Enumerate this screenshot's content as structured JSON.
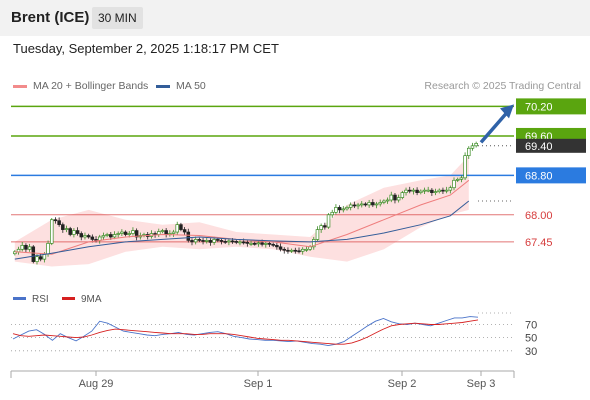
{
  "header": {
    "instrument": "Brent (ICE)",
    "timeframe": "30 MIN"
  },
  "datetime": "Tuesday, September 2, 2025 1:18:17 PM CET",
  "legend": {
    "items": [
      {
        "label": "MA 20 + Bollinger Bands",
        "color": "#f28b8b"
      },
      {
        "label": "MA 50",
        "color": "#335d99"
      }
    ],
    "copyright": "Research © 2025 Trading Central"
  },
  "chart_data": {
    "type": "candlestick",
    "price_ylim": [
      66.9,
      70.35
    ],
    "x_tick_labels": [
      "Aug 29",
      "Sep 1",
      "Sep 2",
      "Sep 3"
    ],
    "levels": [
      {
        "value": 70.2,
        "label": "70.20",
        "kind": "resistance",
        "color": "#5aa50f"
      },
      {
        "value": 69.6,
        "label": "69.60",
        "kind": "resistance",
        "color": "#5aa50f"
      },
      {
        "value": 69.4,
        "label": "69.40",
        "kind": "last-price",
        "color": "#333333"
      },
      {
        "value": 68.8,
        "label": "68.80",
        "kind": "pivot",
        "color": "#2b7be0"
      },
      {
        "value": 68.0,
        "label": "68.00",
        "kind": "support",
        "color": "#d63c3c"
      },
      {
        "value": 67.45,
        "label": "67.45",
        "kind": "support",
        "color": "#d63c3c"
      }
    ],
    "closes": [
      67.25,
      67.3,
      67.38,
      67.3,
      67.35,
      67.05,
      67.15,
      67.1,
      67.2,
      67.42,
      67.9,
      67.88,
      67.8,
      67.7,
      67.72,
      67.6,
      67.68,
      67.62,
      67.55,
      67.58,
      67.55,
      67.5,
      67.48,
      67.55,
      67.58,
      67.6,
      67.55,
      67.6,
      67.62,
      67.65,
      67.6,
      67.62,
      67.68,
      67.55,
      67.58,
      67.6,
      67.56,
      67.62,
      67.6,
      67.66,
      67.68,
      67.6,
      67.62,
      67.65,
      67.8,
      67.7,
      67.65,
      67.48,
      67.45,
      67.5,
      67.48,
      67.46,
      67.48,
      67.44,
      67.5,
      67.48,
      67.46,
      67.45,
      67.47,
      67.46,
      67.44,
      67.45,
      67.44,
      67.42,
      67.42,
      67.41,
      67.43,
      67.4,
      67.42,
      67.4,
      67.38,
      67.35,
      67.3,
      67.28,
      67.26,
      67.28,
      67.27,
      67.26,
      67.3,
      67.3,
      67.35,
      67.5,
      67.7,
      67.78,
      67.75,
      68.0,
      68.05,
      68.15,
      68.1,
      68.12,
      68.15,
      68.2,
      68.18,
      68.2,
      68.22,
      68.2,
      68.25,
      68.2,
      68.22,
      68.25,
      68.28,
      68.3,
      68.4,
      68.3,
      68.35,
      68.45,
      68.5,
      68.48,
      68.5,
      68.45,
      68.48,
      68.5,
      68.5,
      68.45,
      68.47,
      68.5,
      68.48,
      68.5,
      68.55,
      68.7,
      68.72,
      68.75,
      69.2,
      69.35,
      69.4,
      69.45
    ],
    "ma20": [
      [
        0,
        67.25
      ],
      [
        10,
        67.2
      ],
      [
        20,
        67.45
      ],
      [
        30,
        67.55
      ],
      [
        40,
        67.6
      ],
      [
        50,
        67.58
      ],
      [
        60,
        67.5
      ],
      [
        70,
        67.45
      ],
      [
        80,
        67.35
      ],
      [
        90,
        67.6
      ],
      [
        100,
        67.9
      ],
      [
        110,
        68.2
      ],
      [
        118,
        68.4
      ],
      [
        123,
        68.7
      ]
    ],
    "ma50": [
      [
        0,
        67.1
      ],
      [
        10,
        67.22
      ],
      [
        20,
        67.35
      ],
      [
        30,
        67.45
      ],
      [
        40,
        67.5
      ],
      [
        50,
        67.55
      ],
      [
        60,
        67.5
      ],
      [
        70,
        67.47
      ],
      [
        80,
        67.45
      ],
      [
        90,
        67.5
      ],
      [
        100,
        67.63
      ],
      [
        110,
        67.8
      ],
      [
        118,
        67.98
      ],
      [
        123,
        68.28
      ]
    ],
    "bb_upper": [
      [
        0,
        67.45
      ],
      [
        10,
        67.9
      ],
      [
        20,
        68.1
      ],
      [
        30,
        67.9
      ],
      [
        40,
        67.8
      ],
      [
        50,
        67.85
      ],
      [
        60,
        67.65
      ],
      [
        70,
        67.6
      ],
      [
        80,
        67.55
      ],
      [
        90,
        68.2
      ],
      [
        100,
        68.55
      ],
      [
        110,
        68.7
      ],
      [
        118,
        68.8
      ],
      [
        123,
        69.2
      ]
    ],
    "bb_lower": [
      [
        0,
        67.05
      ],
      [
        10,
        66.95
      ],
      [
        20,
        67.0
      ],
      [
        30,
        67.25
      ],
      [
        40,
        67.35
      ],
      [
        50,
        67.3
      ],
      [
        60,
        67.35
      ],
      [
        70,
        67.3
      ],
      [
        80,
        67.15
      ],
      [
        90,
        67.05
      ],
      [
        100,
        67.3
      ],
      [
        110,
        67.75
      ],
      [
        118,
        68.0
      ],
      [
        123,
        68.1
      ]
    ],
    "rsi": {
      "legend": [
        {
          "label": "RSI",
          "color": "#4a73c9"
        },
        {
          "label": "9MA",
          "color": "#d62020"
        }
      ],
      "levels": [
        70,
        50,
        30
      ],
      "ylim": [
        10,
        95
      ],
      "rsi_values": [
        48,
        54,
        60,
        62,
        55,
        46,
        56,
        50,
        45,
        52,
        60,
        75,
        72,
        66,
        60,
        58,
        56,
        54,
        53,
        55,
        56,
        58,
        55,
        54,
        56,
        58,
        59,
        56,
        52,
        50,
        48,
        47,
        46,
        46,
        45,
        44,
        45,
        43,
        41,
        40,
        38,
        40,
        44,
        52,
        60,
        68,
        75,
        79,
        74,
        71,
        70,
        72,
        70,
        68,
        72,
        76,
        80,
        80,
        82,
        81
      ],
      "ma_values": [
        56,
        53,
        52,
        53,
        54,
        53,
        52,
        51,
        50,
        51,
        54,
        58,
        61,
        63,
        62,
        61,
        60,
        59,
        58,
        57,
        56,
        56,
        56,
        55,
        55,
        56,
        56,
        56,
        55,
        53,
        51,
        49,
        48,
        47,
        46,
        46,
        45,
        44,
        43,
        42,
        41,
        40,
        40,
        42,
        46,
        51,
        57,
        63,
        68,
        70,
        71,
        72,
        71,
        70,
        70,
        71,
        72,
        73,
        75,
        77
      ]
    }
  }
}
